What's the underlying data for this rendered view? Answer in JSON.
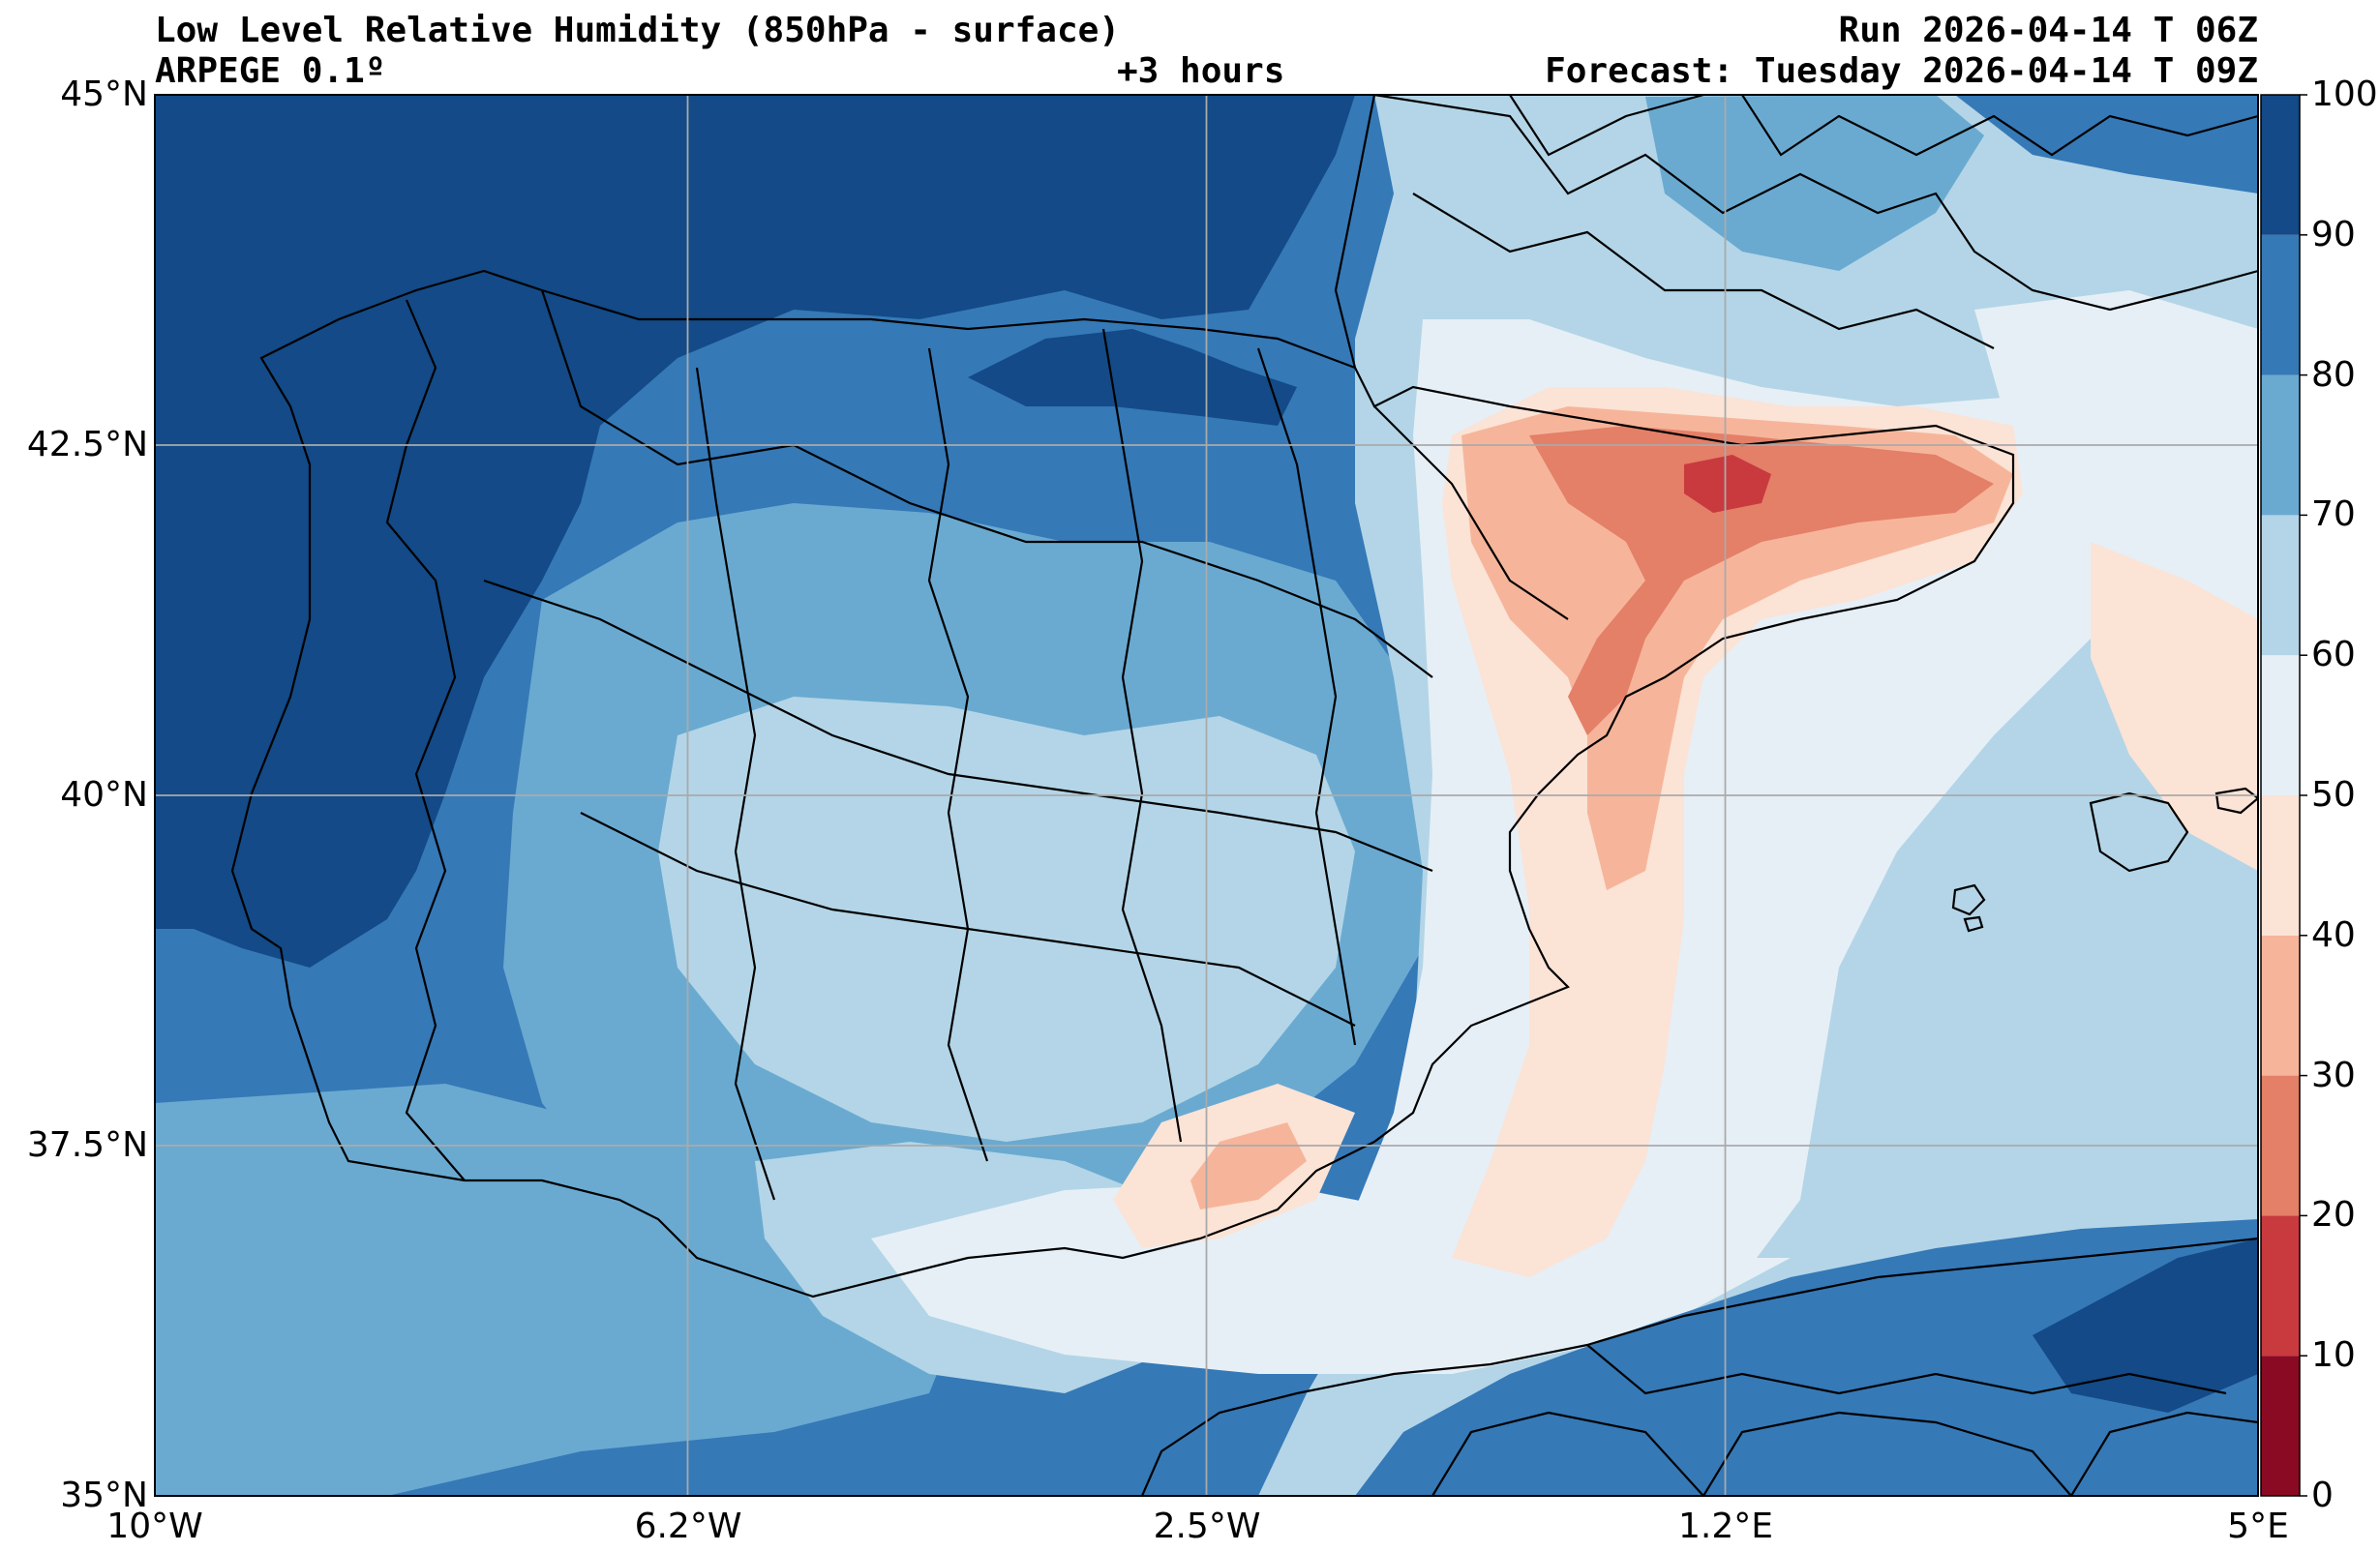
{
  "header": {
    "title": "Low Level Relative Humidity (850hPa - surface)",
    "model": "ARPEGE 0.1º",
    "lead_time": "+3 hours",
    "run": "Run 2026-04-14 T 06Z",
    "forecast": "Forecast: Tuesday 2026-04-14 T 09Z"
  },
  "map": {
    "variable": "Relative humidity (%)",
    "lon_range": [
      -10,
      5
    ],
    "lat_range": [
      35,
      45
    ],
    "lon_ticks": [
      {
        "value": -10,
        "label": "10°W"
      },
      {
        "value": -6.2,
        "label": "6.2°W"
      },
      {
        "value": -2.5,
        "label": "2.5°W"
      },
      {
        "value": 1.2,
        "label": "1.2°E"
      },
      {
        "value": 5,
        "label": "5°E"
      }
    ],
    "lat_ticks": [
      {
        "value": 45,
        "label": "45°N"
      },
      {
        "value": 42.5,
        "label": "42.5°N"
      },
      {
        "value": 40,
        "label": "40°N"
      },
      {
        "value": 37.5,
        "label": "37.5°N"
      },
      {
        "value": 35,
        "label": "35°N"
      }
    ]
  },
  "colorbar": {
    "levels": [
      0,
      10,
      20,
      30,
      40,
      50,
      60,
      70,
      80,
      90,
      100
    ],
    "labels": [
      "0",
      "10",
      "20",
      "30",
      "40",
      "50",
      "60",
      "70",
      "80",
      "90",
      "100"
    ],
    "colors": [
      "#8b0a23",
      "#c83a3e",
      "#e47f68",
      "#f6b59a",
      "#fbe3d6",
      "#e6eff6",
      "#b3d5e7",
      "#6aaad1",
      "#3579b7",
      "#134a87"
    ]
  }
}
